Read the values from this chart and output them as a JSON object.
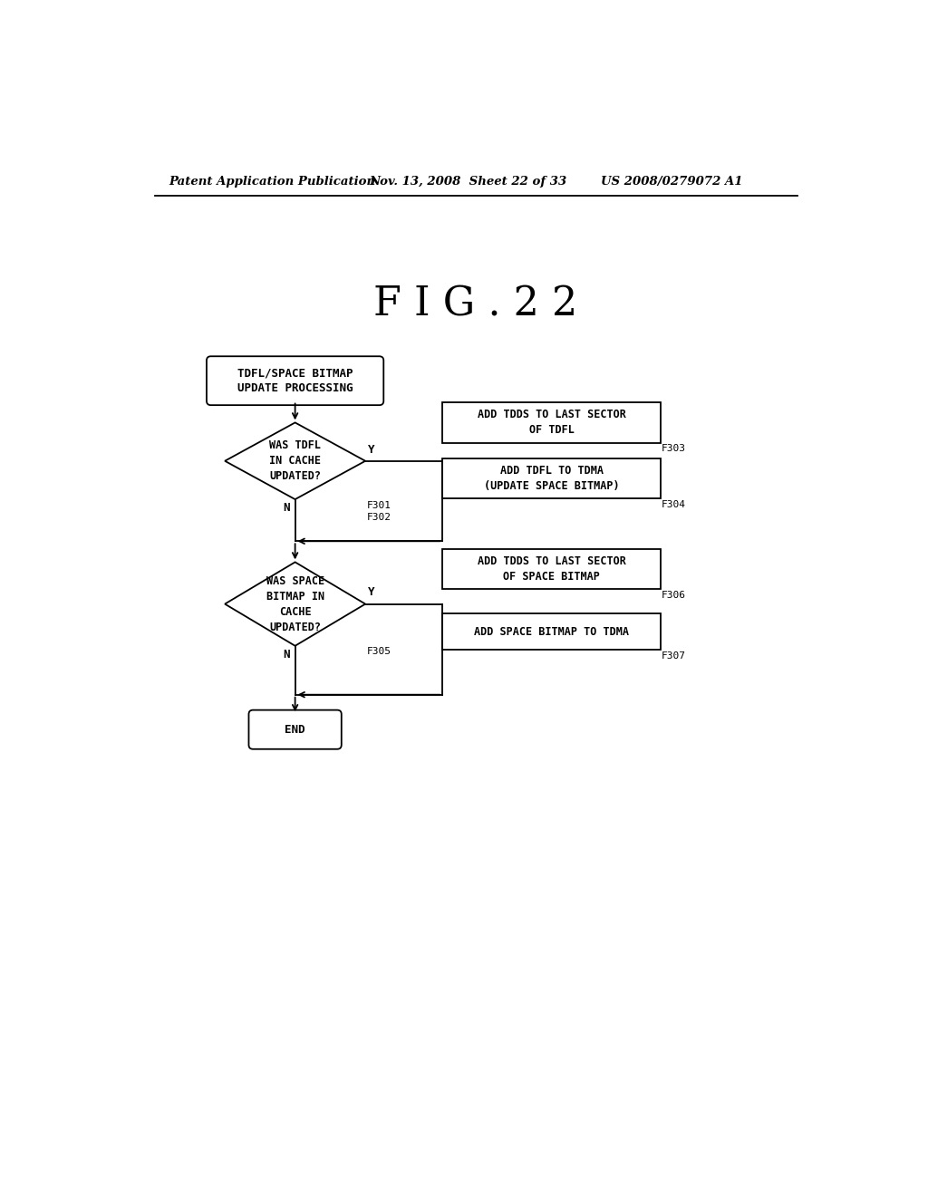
{
  "background_color": "#ffffff",
  "header_left": "Patent Application Publication",
  "header_mid": "Nov. 13, 2008  Sheet 22 of 33",
  "header_right": "US 2008/0279072 A1",
  "figure_title": "F I G . 2 2",
  "start_label": "TDFL/SPACE BITMAP\nUPDATE PROCESSING",
  "d1_label": "WAS TDFL\nIN CACHE\nUPDATED?",
  "b303_label": "ADD TDDS TO LAST SECTOR\nOF TDFL",
  "b304_label": "ADD TDFL TO TDMA\n(UPDATE SPACE BITMAP)",
  "d2_label": "WAS SPACE\nBITMAP IN\nCACHE\nUPDATED?",
  "b306_label": "ADD TDDS TO LAST SECTOR\nOF SPACE BITMAP",
  "b307_label": "ADD SPACE BITMAP TO TDMA",
  "end_label": "END",
  "ref_f301": "F301",
  "ref_f302": "F302",
  "ref_f303": "F303",
  "ref_f304": "F304",
  "ref_f305": "F305",
  "ref_f306": "F306",
  "ref_f307": "F307"
}
